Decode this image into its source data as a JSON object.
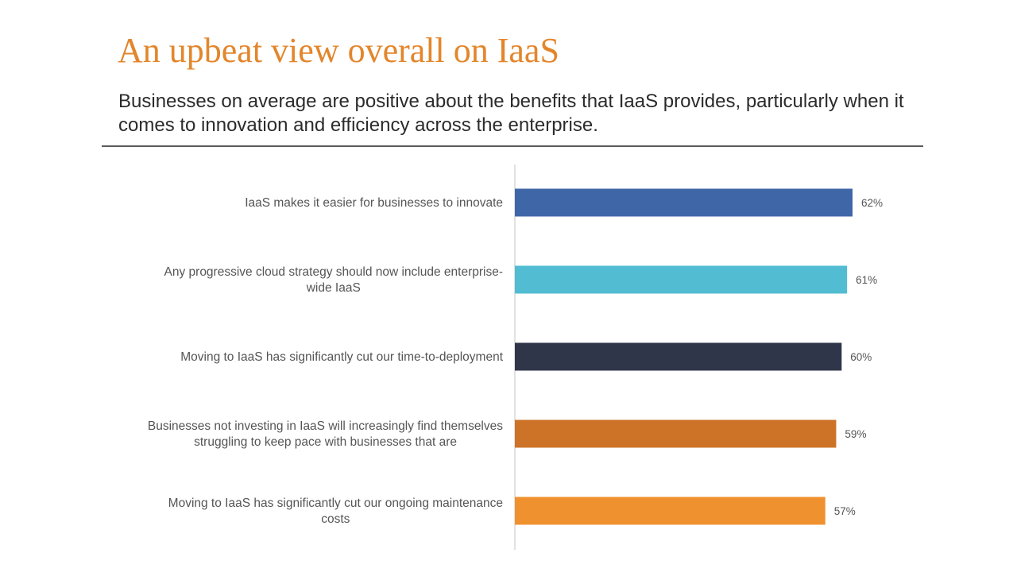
{
  "title": "An upbeat view overall on IaaS",
  "subtitle": "Businesses on average are positive about the benefits that IaaS provides, particularly when it comes to innovation and efficiency across the enterprise.",
  "chart_data": {
    "type": "bar",
    "orientation": "horizontal",
    "categories": [
      [
        "IaaS makes it easier for businesses to innovate"
      ],
      [
        "Any progressive cloud strategy should now include enterprise-",
        "wide IaaS"
      ],
      [
        "Moving to IaaS has significantly cut our time-to-deployment"
      ],
      [
        "Businesses not investing in IaaS will increasingly find themselves",
        "struggling to keep pace with businesses that are"
      ],
      [
        "Moving to IaaS has significantly cut our ongoing maintenance",
        "costs"
      ]
    ],
    "values": [
      62,
      61,
      60,
      59,
      57
    ],
    "value_labels": [
      "62%",
      "61%",
      "60%",
      "59%",
      "57%"
    ],
    "bar_colors": [
      "#3f67a8",
      "#51bcd2",
      "#30364a",
      "#cd7327",
      "#f0912f"
    ],
    "xlim": [
      0,
      100
    ],
    "grid": false,
    "legend": "none"
  }
}
